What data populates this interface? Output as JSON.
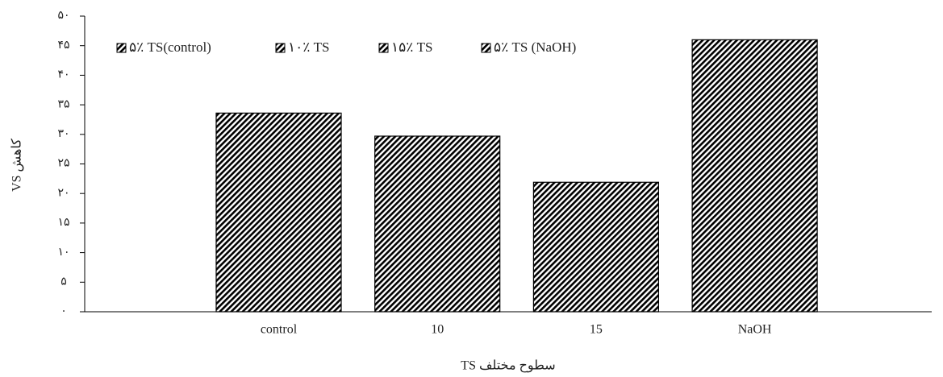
{
  "chart_data": {
    "type": "bar",
    "categories": [
      "control",
      "10",
      "15",
      "NaOH"
    ],
    "series": [
      {
        "name": "۵٪ TS(control)",
        "color": "#000000",
        "values": [
          33.6,
          null,
          null,
          null
        ]
      },
      {
        "name": "۱۰٪ TS",
        "color": "#000000",
        "values": [
          null,
          29.7,
          null,
          null
        ]
      },
      {
        "name": "۱۵٪ TS",
        "color": "#000000",
        "values": [
          null,
          null,
          21.9,
          null
        ]
      },
      {
        "name": "۵٪ TS (NaOH)",
        "color": "#000000",
        "values": [
          null,
          null,
          null,
          46.0
        ]
      }
    ],
    "ylim": [
      0,
      50
    ],
    "yticks": [
      {
        "value": 0,
        "label": "۰"
      },
      {
        "value": 5,
        "label": "۵"
      },
      {
        "value": 10,
        "label": "۱۰"
      },
      {
        "value": 15,
        "label": "۱۵"
      },
      {
        "value": 20,
        "label": "۲۰"
      },
      {
        "value": 25,
        "label": "۲۵"
      },
      {
        "value": 30,
        "label": "۳۰"
      },
      {
        "value": 35,
        "label": "۳۵"
      },
      {
        "value": 40,
        "label": "۴۰"
      },
      {
        "value": 45,
        "label": "۴۵"
      },
      {
        "value": 50,
        "label": "۵۰"
      }
    ],
    "y_label": "کاهش VS",
    "x_label": "سطوح مختلف TS",
    "legend": "top-left",
    "grid": false
  }
}
